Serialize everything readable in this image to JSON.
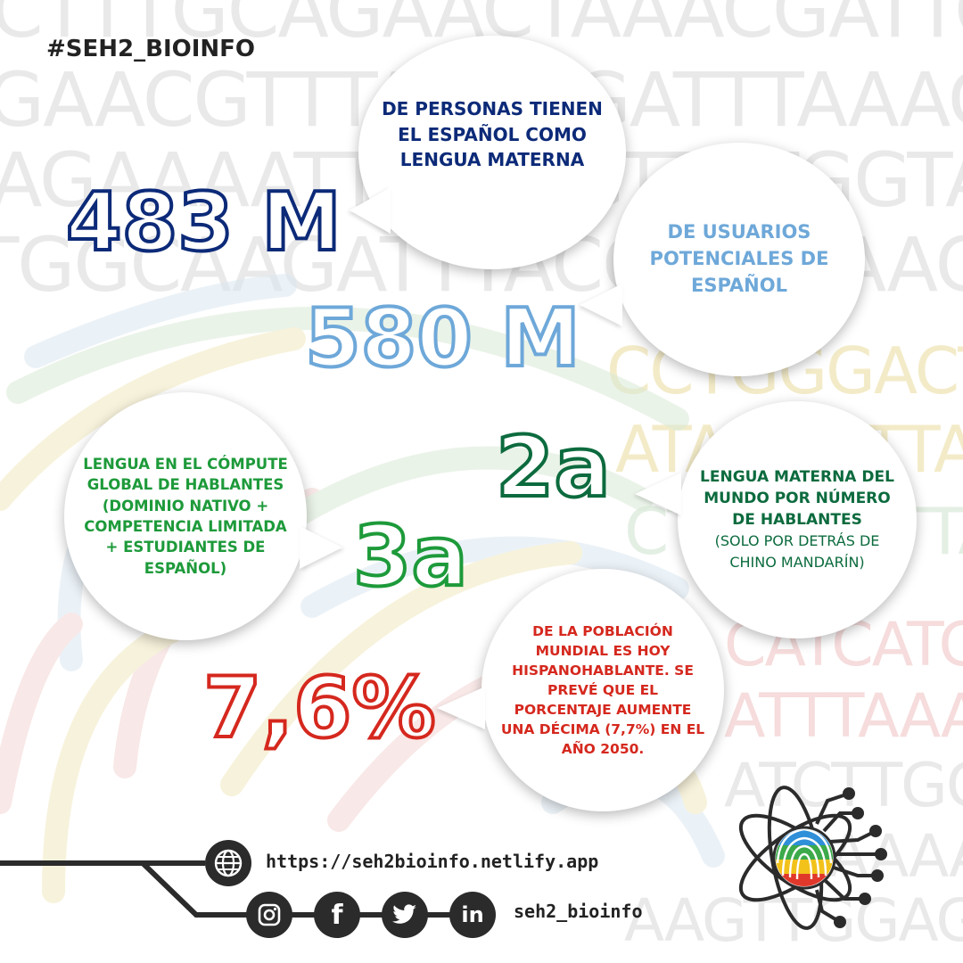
{
  "header": {
    "hashtag": "#SEH2_BIOINFO"
  },
  "background": {
    "dna_rows": [
      "CTTTGCAGAACTAAACGATTCAACTTTACTT",
      "GAACGTTTAGACGATTTAAAGAAATGTTTT",
      "AGAAAATTTGATGTTCTGGTACCGACACTA",
      "TGGCAAGATTTACCCTTAAAGACCTTGGCCA"
    ],
    "dna_right": [
      "CCTGGGACTTGG",
      "ATAGGCTTACCG",
      "CTTTTCTTTAAA",
      "CATCATCAAG",
      "ATTTAAACCT",
      "ATCTTGGGTT",
      "GAAAAACGGA",
      "AAGTTGGAG"
    ]
  },
  "stats": [
    {
      "value": "483 M",
      "desc": "DE PERSONAS TIENEN EL ESPAÑOL COMO LENGUA MATERNA",
      "color": "#0c2a78"
    },
    {
      "value": "580 M",
      "desc": "DE USUARIOS POTENCIALES DE ESPAÑOL",
      "color": "#6ea8d9"
    },
    {
      "value": "2a",
      "desc": "LENGUA MATERNA DEL MUNDO POR NÚMERO DE HABLANTES",
      "note": "(SOLO POR DETRÁS DE CHINO MANDARÍN)",
      "color": "#0c6b3e"
    },
    {
      "value": "3a",
      "desc": "LENGUA EN EL CÓMPUTE GLOBAL DE HABLANTES (DOMINIO NATIVO + COMPETENCIA LIMITADA + ESTUDIANTES DE ESPAÑOL)",
      "color": "#1d9a3a"
    },
    {
      "value": "7,6%",
      "desc": "DE LA POBLACIÓN MUNDIAL ES HOY HISPANOHABLANTE. SE PREVÉ QUE EL PORCENTAJE AUMENTE UNA DÉCIMA (7,7%) EN EL AÑO 2050.",
      "color": "#d5281e"
    }
  ],
  "footer": {
    "website": "https://seh2bioinfo.netlify.app",
    "handle": "seh2_bioinfo",
    "icons": [
      "globe-icon",
      "instagram-icon",
      "facebook-icon",
      "twitter-icon",
      "linkedin-icon"
    ],
    "facebook_glyph": "f",
    "linkedin_glyph": "in"
  }
}
